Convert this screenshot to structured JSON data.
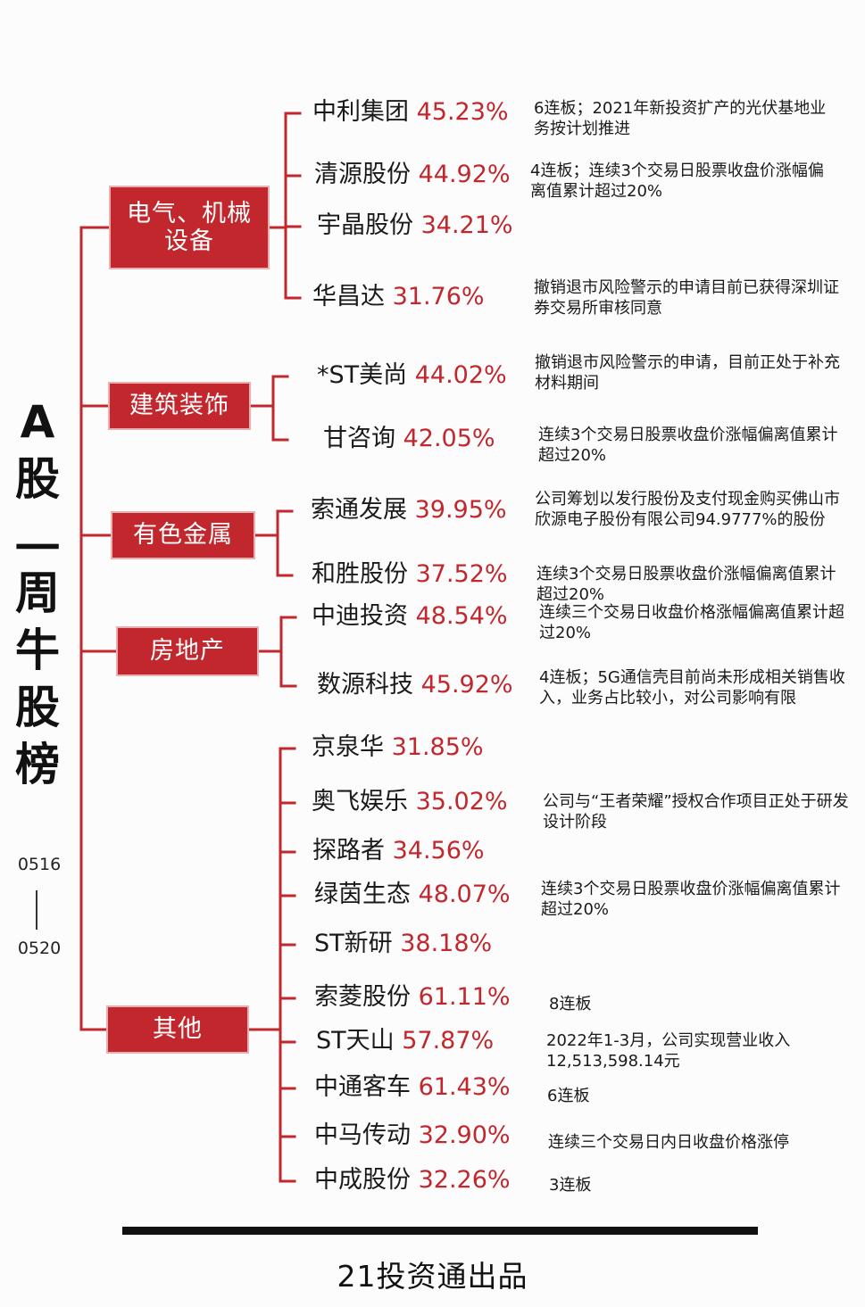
{
  "title_chars": [
    "A",
    "股",
    "一",
    "周",
    "牛",
    "股",
    "榜"
  ],
  "date_start": "0516",
  "date_end": "0520",
  "categories": [
    {
      "name": "电气、机械\n设备",
      "stocks": [
        {
          "name": "中利集团",
          "pct": "45.23%",
          "note": "6连板；2021年新投资扩产的光伏基地业务按计划推进"
        },
        {
          "name": "清源股份",
          "pct": "44.92%",
          "note": "4连板；连续3个交易日股票收盘价涨幅偏离值累计超过20%"
        },
        {
          "name": "宇晶股份",
          "pct": "34.21%",
          "note": ""
        },
        {
          "name": "华昌达",
          "pct": "31.76%",
          "note": "撤销退市风险警示的申请目前已获得深圳证券交易所审核同意"
        }
      ]
    },
    {
      "name": "建筑装饰",
      "stocks": [
        {
          "name": "*ST美尚",
          "pct": "44.02%",
          "note": "撤销退市风险警示的申请，目前正处于补充材料期间"
        },
        {
          "name": "甘咨询",
          "pct": "42.05%",
          "note": "连续3个交易日股票收盘价涨幅偏离值累计超过20%"
        }
      ]
    },
    {
      "name": "有色金属",
      "stocks": [
        {
          "name": "索通发展",
          "pct": "39.95%",
          "note": "公司筹划以发行股份及支付现金购买佛山市欣源电子股份有限公司94.9777%的股份"
        },
        {
          "name": "和胜股份",
          "pct": "37.52%",
          "note": "连续3个交易日股票收盘价涨幅偏离值累计超过20%"
        }
      ]
    },
    {
      "name": "房地产",
      "stocks": [
        {
          "name": "中迪投资",
          "pct": "48.54%",
          "note": "连续三个交易日收盘价格涨幅偏离值累计超过20%"
        },
        {
          "name": "数源科技",
          "pct": "45.92%",
          "note": "4连板；5G通信壳目前尚未形成相关销售收入，业务占比较小，对公司影响有限"
        }
      ]
    },
    {
      "name": "其他",
      "stocks": [
        {
          "name": "京泉华",
          "pct": "31.85%",
          "note": ""
        },
        {
          "name": "奥飞娱乐",
          "pct": "35.02%",
          "note": "公司与“王者荣耀”授权合作项目正处于研发设计阶段"
        },
        {
          "name": "探路者",
          "pct": "34.56%",
          "note": ""
        },
        {
          "name": "绿茵生态",
          "pct": "48.07%",
          "note": "连续3个交易日股票收盘价涨幅偏离值累计超过20%"
        },
        {
          "name": "ST新研",
          "pct": "38.18%",
          "note": ""
        },
        {
          "name": "索菱股份",
          "pct": "61.11%",
          "note": "8连板"
        },
        {
          "name": "ST天山",
          "pct": "57.87%",
          "note": "2022年1-3月，公司实现营业收入12,513,598.14元"
        },
        {
          "name": "中通客车",
          "pct": "61.43%",
          "note": "6连板"
        },
        {
          "name": "中马传动",
          "pct": "32.90%",
          "note": "连续三个交易日内日收盘价格涨停"
        },
        {
          "name": "中成股份",
          "pct": "32.26%",
          "note": "3连板"
        }
      ]
    }
  ],
  "footer": "21投资通出品",
  "colors": {
    "accent": "#c1272d",
    "text": "#1a1a1a"
  }
}
